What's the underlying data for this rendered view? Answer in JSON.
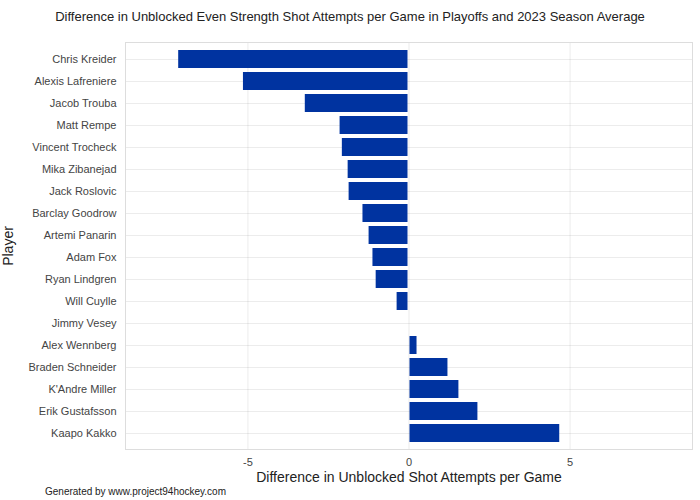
{
  "chart_data": {
    "type": "bar",
    "orientation": "horizontal",
    "title": "Difference in Unblocked Even Strength Shot Attempts per Game in Playoffs and 2023 Season Average",
    "x_label": "Difference in Unblocked Shot Attempts per Game",
    "y_label": "Player",
    "caption": "Generated by www.project94hockey.com",
    "categories": [
      "Chris Kreider",
      "Alexis Lafreniere",
      "Jacob Trouba",
      "Matt Rempe",
      "Vincent Trocheck",
      "Mika Zibanejad",
      "Jack Roslovic",
      "Barclay Goodrow",
      "Artemi Panarin",
      "Adam Fox",
      "Ryan Lindgren",
      "Will Cuylle",
      "Jimmy Vesey",
      "Alex Wennberg",
      "Braden Schneider",
      "K'Andre Miller",
      "Erik Gustafsson",
      "Kaapo Kakko"
    ],
    "values": [
      -7.18,
      -5.17,
      -3.25,
      -2.17,
      -2.1,
      -1.92,
      -1.89,
      -1.46,
      -1.27,
      -1.15,
      -1.05,
      -0.4,
      0.05,
      0.28,
      1.24,
      1.58,
      2.17,
      4.71
    ],
    "color": "#0033a0",
    "xlim": [
      -8.8,
      8.8
    ],
    "xticks": [
      -5,
      0,
      5
    ],
    "grid": true
  }
}
